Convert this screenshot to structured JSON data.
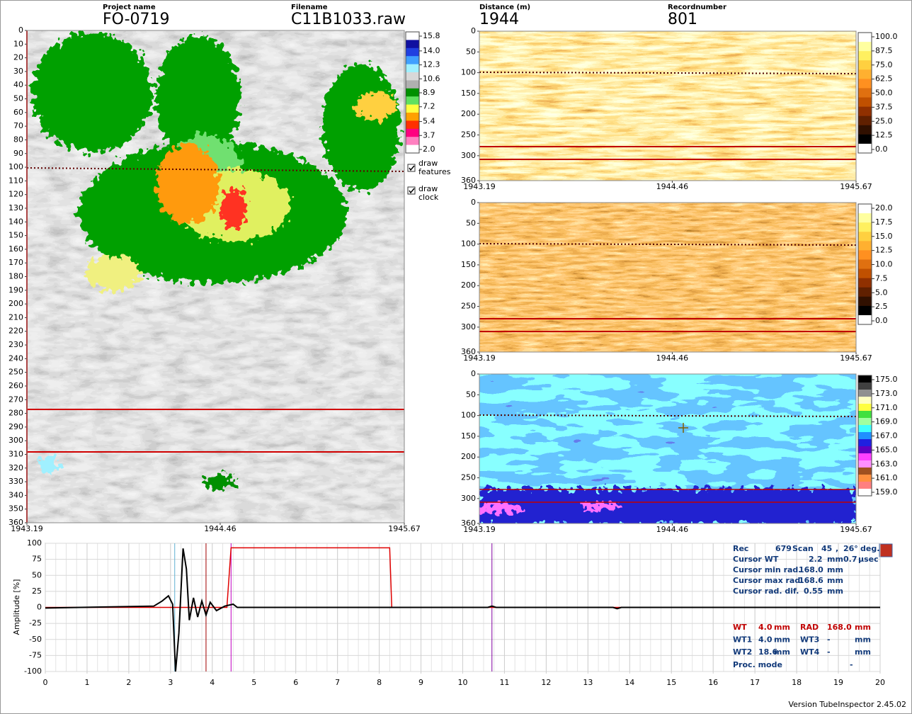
{
  "header": {
    "project_name_label": "Project name",
    "project_name": "FO-0719",
    "filename_label": "Filename",
    "filename": "C11B1033.raw",
    "distance_label": "Distance (m)",
    "distance": "1944",
    "record_label": "Recordnumber",
    "record": "801"
  },
  "main_map": {
    "ylim": [
      0,
      360
    ],
    "yticks": [
      0,
      10,
      20,
      30,
      40,
      50,
      60,
      70,
      80,
      90,
      100,
      110,
      120,
      130,
      140,
      150,
      160,
      170,
      180,
      190,
      200,
      210,
      220,
      230,
      240,
      250,
      260,
      270,
      280,
      290,
      300,
      310,
      320,
      330,
      340,
      350,
      360
    ],
    "xlim": [
      1943.19,
      1945.67
    ],
    "xticks": [
      1943.19,
      1944.46,
      1945.67
    ],
    "colorbar": {
      "ticks": [
        15.8,
        {
          "value": 14,
          "label": "14.0"
        },
        12.3,
        10.6,
        8.9,
        7.2,
        5.4,
        3.7,
        {
          "value": 2,
          "label": "2.0"
        }
      ],
      "colors": [
        "#ffffff",
        "#1010a0",
        "#2040e0",
        "#40a0ff",
        "#a0f0ff",
        "#d8d8d8",
        "#b0b0b0",
        "#009000",
        "#60e060",
        "#ffff40",
        "#ffa000",
        "#ff3000",
        "#ff0080",
        "#ff80c0",
        "#ffffff"
      ]
    }
  },
  "checkboxes": [
    {
      "lines": [
        "draw",
        "features"
      ]
    },
    {
      "lines": [
        "draw",
        "clock"
      ]
    }
  ],
  "maps": [
    {
      "ylim": [
        0,
        360
      ],
      "yticks": [
        0,
        50,
        100,
        150,
        200,
        250,
        300,
        360
      ],
      "xlim": [
        1943.19,
        1945.67
      ],
      "xticks": [
        1943.19,
        1944.46,
        1945.67
      ],
      "colorbar": {
        "ticks": [
          {
            "value": 100,
            "label": "100.0"
          },
          87.5,
          {
            "value": 75,
            "label": "75.0"
          },
          62.5,
          {
            "value": 50,
            "label": "50.0"
          },
          37.5,
          {
            "value": 25,
            "label": "25.0"
          },
          12.5,
          {
            "value": 0,
            "label": "0.0"
          }
        ],
        "colors": [
          "#ffffff",
          "#ffffa0",
          "#fff060",
          "#ffd040",
          "#ffb030",
          "#ff9020",
          "#e07010",
          "#c05000",
          "#903000",
          "#602000",
          "#301000",
          "#000000",
          "#ffffff"
        ]
      }
    },
    {
      "ylim": [
        0,
        360
      ],
      "yticks": [
        0,
        50,
        100,
        150,
        200,
        250,
        300,
        360
      ],
      "xlim": [
        1943.19,
        1945.67
      ],
      "xticks": [
        1943.19,
        1944.46,
        1945.67
      ],
      "colorbar": {
        "ticks": [
          {
            "value": 20,
            "label": "20.0"
          },
          17.5,
          {
            "value": 15,
            "label": "15.0"
          },
          12.5,
          {
            "value": 10,
            "label": "10.0"
          },
          7.5,
          {
            "value": 5,
            "label": "5.0"
          },
          2.5,
          {
            "value": 0,
            "label": "0.0"
          }
        ],
        "colors": [
          "#ffffff",
          "#ffffa0",
          "#fff060",
          "#ffd040",
          "#ffb030",
          "#ff9020",
          "#e07010",
          "#c05000",
          "#903000",
          "#602000",
          "#301000",
          "#000000",
          "#ffffff"
        ]
      }
    },
    {
      "ylim": [
        0,
        360
      ],
      "yticks": [
        0,
        50,
        100,
        150,
        200,
        250,
        300,
        360
      ],
      "xlim": [
        1943.19,
        1945.67
      ],
      "xticks": [
        1943.19,
        1944.46,
        1945.67
      ],
      "colorbar": {
        "ticks": [
          {
            "value": 175,
            "label": "175.0"
          },
          {
            "value": 173,
            "label": "173.0"
          },
          {
            "value": 171,
            "label": "171.0"
          },
          {
            "value": 169,
            "label": "169.0"
          },
          {
            "value": 167,
            "label": "167.0"
          },
          {
            "value": 165,
            "label": "165.0"
          },
          {
            "value": 163,
            "label": "163.0"
          },
          {
            "value": 161,
            "label": "161.0"
          },
          {
            "value": 159,
            "label": "159.0"
          }
        ],
        "colors": [
          "#000000",
          "#404040",
          "#909090",
          "#ffffc0",
          "#ffff40",
          "#40e040",
          "#a0ffa0",
          "#40ffff",
          "#2090ff",
          "#2020e0",
          "#6000c0",
          "#ff40ff",
          "#ff90ff",
          "#a05020",
          "#ff9040",
          "#ff8080",
          "#ffffff"
        ]
      }
    }
  ],
  "waveform": {
    "ylabel": "Amplitude [%]",
    "ylim": [
      -100,
      100
    ],
    "yticks": [
      100,
      75,
      50,
      25,
      0,
      -25,
      -50,
      -75,
      -100
    ],
    "xlim": [
      0,
      20
    ],
    "xticks": [
      0,
      1,
      2,
      3,
      4,
      5,
      6,
      7,
      8,
      9,
      10,
      11,
      12,
      13,
      14,
      15,
      16,
      17,
      18,
      19,
      20
    ],
    "signal": {
      "color": "#000000",
      "x": [
        0,
        2.6,
        2.8,
        2.95,
        3.05,
        3.12,
        3.2,
        3.3,
        3.38,
        3.45,
        3.55,
        3.65,
        3.75,
        3.85,
        3.95,
        4.1,
        4.3,
        4.5,
        4.6,
        10.6,
        10.7,
        10.8,
        13.6,
        13.7,
        13.8,
        20
      ],
      "values": [
        -1,
        2,
        10,
        18,
        5,
        -100,
        -40,
        92,
        60,
        -20,
        15,
        -15,
        10,
        -12,
        8,
        -5,
        2,
        5,
        0,
        0,
        2,
        0,
        0,
        -2,
        0,
        0
      ]
    },
    "gate": {
      "color": "#e00000",
      "x": [
        0,
        4.35,
        4.45,
        8.25,
        8.3,
        20
      ],
      "values": [
        0,
        0,
        93,
        93,
        0,
        0
      ]
    },
    "markers": [
      {
        "x": 3.1,
        "color": "#60b0d0"
      },
      {
        "x": 3.85,
        "color": "#a00000"
      },
      {
        "x": 4.45,
        "color": "#c000c0"
      },
      {
        "x": 10.7,
        "color": "#8000a0"
      }
    ]
  },
  "info": {
    "rows": [
      [
        "Rec",
        "679",
        "Scan",
        "45",
        ",",
        "26°",
        "deg."
      ],
      [
        "Cursor WT",
        "2.2",
        "mm",
        "0.7",
        "µsec"
      ],
      [
        "Cursor min rad.",
        "168.0",
        "mm"
      ],
      [
        "Cursor max rad.",
        "168.6",
        "mm"
      ],
      [
        "Cursor rad. dif.",
        "0.55",
        "mm"
      ]
    ],
    "gate_rows": [
      [
        "WT",
        "4.0",
        "mm",
        "RAD",
        "168.0",
        "mm"
      ],
      [
        "WT1",
        "4.0",
        "mm",
        "WT3",
        "-",
        "mm"
      ],
      [
        "WT2",
        "18.6",
        "mm",
        "WT4",
        "-",
        "mm"
      ]
    ],
    "proc_mode": [
      "Proc. mode",
      "-"
    ]
  },
  "footer": "Version TubeInspector 2.45.02"
}
